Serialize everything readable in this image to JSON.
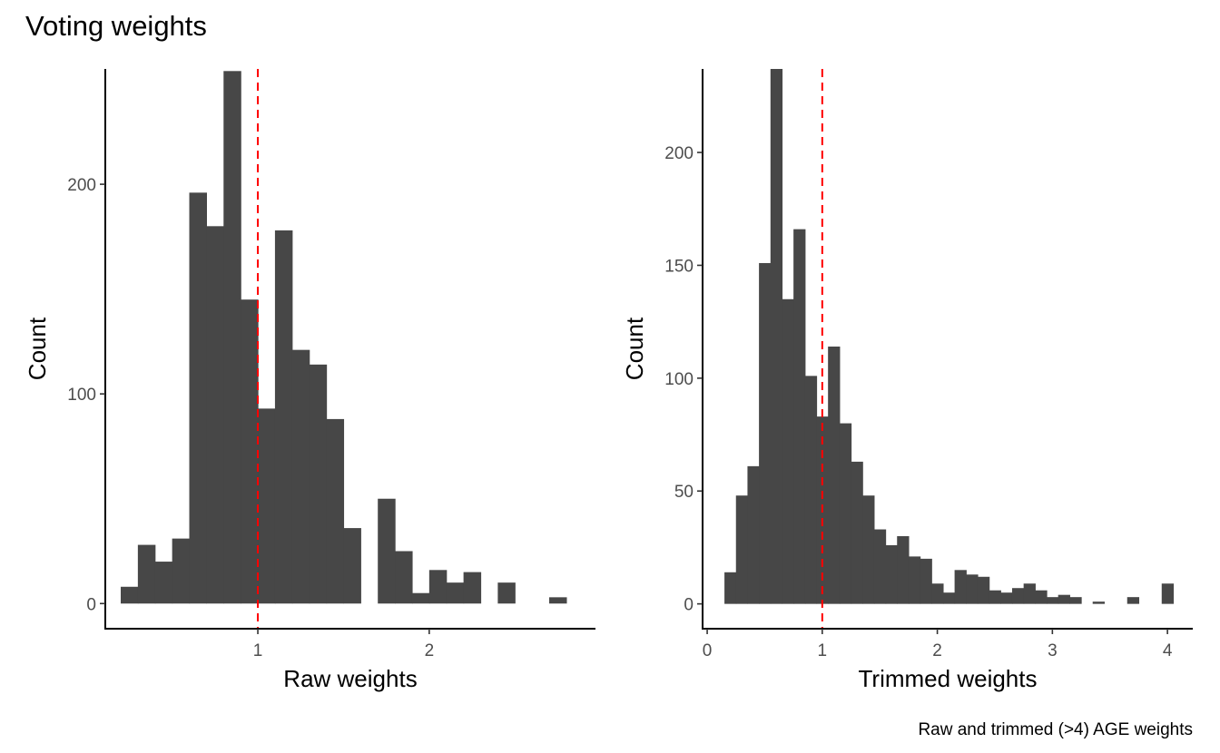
{
  "title": "Voting weights",
  "caption": "Raw and trimmed (>4) AGE weights",
  "colors": {
    "bar": "#474747",
    "reference_line": "#ff0000",
    "axis": "#000000",
    "tick_label": "#4d4d4d"
  },
  "chart_data": [
    {
      "type": "bar",
      "panel": "left",
      "xlabel": "Raw weights",
      "ylabel": "Count",
      "xlim": [
        0.11,
        2.97
      ],
      "ylim": [
        -12,
        255
      ],
      "xticks": [
        1,
        2
      ],
      "yticks": [
        0,
        100,
        200
      ],
      "reference_x": 1,
      "bin_width": 0.1,
      "bins": [
        {
          "x0": 0.2,
          "count": 8
        },
        {
          "x0": 0.3,
          "count": 28
        },
        {
          "x0": 0.4,
          "count": 20
        },
        {
          "x0": 0.5,
          "count": 31
        },
        {
          "x0": 0.6,
          "count": 196
        },
        {
          "x0": 0.7,
          "count": 180
        },
        {
          "x0": 0.8,
          "count": 254
        },
        {
          "x0": 0.9,
          "count": 145
        },
        {
          "x0": 1.0,
          "count": 93
        },
        {
          "x0": 1.1,
          "count": 178
        },
        {
          "x0": 1.2,
          "count": 121
        },
        {
          "x0": 1.3,
          "count": 114
        },
        {
          "x0": 1.4,
          "count": 88
        },
        {
          "x0": 1.5,
          "count": 36
        },
        {
          "x0": 1.6,
          "count": 0
        },
        {
          "x0": 1.7,
          "count": 50
        },
        {
          "x0": 1.8,
          "count": 25
        },
        {
          "x0": 1.9,
          "count": 5
        },
        {
          "x0": 2.0,
          "count": 16
        },
        {
          "x0": 2.1,
          "count": 10
        },
        {
          "x0": 2.2,
          "count": 15
        },
        {
          "x0": 2.3,
          "count": 0
        },
        {
          "x0": 2.4,
          "count": 10
        },
        {
          "x0": 2.5,
          "count": 0
        },
        {
          "x0": 2.6,
          "count": 0
        },
        {
          "x0": 2.7,
          "count": 3
        }
      ]
    },
    {
      "type": "bar",
      "panel": "right",
      "xlabel": "Trimmed weights",
      "ylabel": "Count",
      "xlim": [
        -0.04,
        4.22
      ],
      "ylim": [
        -11,
        237
      ],
      "xticks": [
        0,
        1,
        2,
        3,
        4
      ],
      "yticks": [
        0,
        50,
        100,
        150,
        200
      ],
      "reference_x": 1,
      "bin_width": 0.1,
      "bins": [
        {
          "x0": 0.15,
          "count": 14
        },
        {
          "x0": 0.25,
          "count": 48
        },
        {
          "x0": 0.35,
          "count": 61
        },
        {
          "x0": 0.45,
          "count": 151
        },
        {
          "x0": 0.55,
          "count": 237
        },
        {
          "x0": 0.65,
          "count": 135
        },
        {
          "x0": 0.75,
          "count": 166
        },
        {
          "x0": 0.85,
          "count": 101
        },
        {
          "x0": 0.95,
          "count": 83
        },
        {
          "x0": 1.05,
          "count": 114
        },
        {
          "x0": 1.15,
          "count": 80
        },
        {
          "x0": 1.25,
          "count": 63
        },
        {
          "x0": 1.35,
          "count": 48
        },
        {
          "x0": 1.45,
          "count": 33
        },
        {
          "x0": 1.55,
          "count": 26
        },
        {
          "x0": 1.65,
          "count": 30
        },
        {
          "x0": 1.75,
          "count": 21
        },
        {
          "x0": 1.85,
          "count": 20
        },
        {
          "x0": 1.95,
          "count": 9
        },
        {
          "x0": 2.05,
          "count": 5
        },
        {
          "x0": 2.15,
          "count": 15
        },
        {
          "x0": 2.25,
          "count": 13
        },
        {
          "x0": 2.35,
          "count": 12
        },
        {
          "x0": 2.45,
          "count": 6
        },
        {
          "x0": 2.55,
          "count": 5
        },
        {
          "x0": 2.65,
          "count": 7
        },
        {
          "x0": 2.75,
          "count": 9
        },
        {
          "x0": 2.85,
          "count": 6
        },
        {
          "x0": 2.95,
          "count": 3
        },
        {
          "x0": 3.05,
          "count": 4
        },
        {
          "x0": 3.15,
          "count": 3
        },
        {
          "x0": 3.25,
          "count": 0
        },
        {
          "x0": 3.35,
          "count": 1
        },
        {
          "x0": 3.45,
          "count": 0
        },
        {
          "x0": 3.55,
          "count": 0
        },
        {
          "x0": 3.65,
          "count": 3
        },
        {
          "x0": 3.75,
          "count": 0
        },
        {
          "x0": 3.85,
          "count": 0
        },
        {
          "x0": 3.95,
          "count": 9
        }
      ]
    }
  ]
}
